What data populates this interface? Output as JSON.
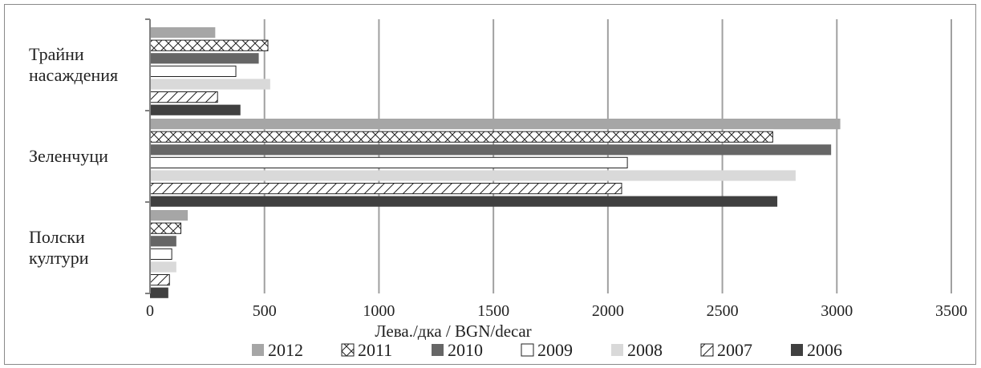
{
  "chart_data": {
    "type": "bar",
    "orientation": "horizontal",
    "categories": [
      "Трайни насаждения",
      "Зеленчуци",
      "Полски култури"
    ],
    "category_lines": [
      [
        "Трайни",
        "насаждения"
      ],
      [
        "Зеленчуци"
      ],
      [
        "Полски",
        "култури"
      ]
    ],
    "series": [
      {
        "name": "2012",
        "values": [
          285,
          3015,
          165
        ],
        "color": "#a6a6a6",
        "pattern": "solid"
      },
      {
        "name": "2011",
        "values": [
          515,
          2720,
          135
        ],
        "color": "#ffffff",
        "pattern": "crosshatch"
      },
      {
        "name": "2010",
        "values": [
          475,
          2975,
          115
        ],
        "color": "#666666",
        "pattern": "solid"
      },
      {
        "name": "2009",
        "values": [
          375,
          2085,
          95
        ],
        "color": "#ffffff",
        "pattern": "outline"
      },
      {
        "name": "2008",
        "values": [
          525,
          2820,
          115
        ],
        "color": "#d9d9d9",
        "pattern": "solid"
      },
      {
        "name": "2007",
        "values": [
          295,
          2060,
          85
        ],
        "color": "#ffffff",
        "pattern": "diagonal"
      },
      {
        "name": "2006",
        "values": [
          395,
          2740,
          80
        ],
        "color": "#404040",
        "pattern": "solid"
      }
    ],
    "xlabel": "Лева./дка / BGN/decar",
    "xlim": [
      0,
      3500
    ],
    "x_ticks": [
      "0",
      "500",
      "1000",
      "1500",
      "2000",
      "2500",
      "3000",
      "3500"
    ],
    "grid": true,
    "legend_position": "bottom"
  }
}
